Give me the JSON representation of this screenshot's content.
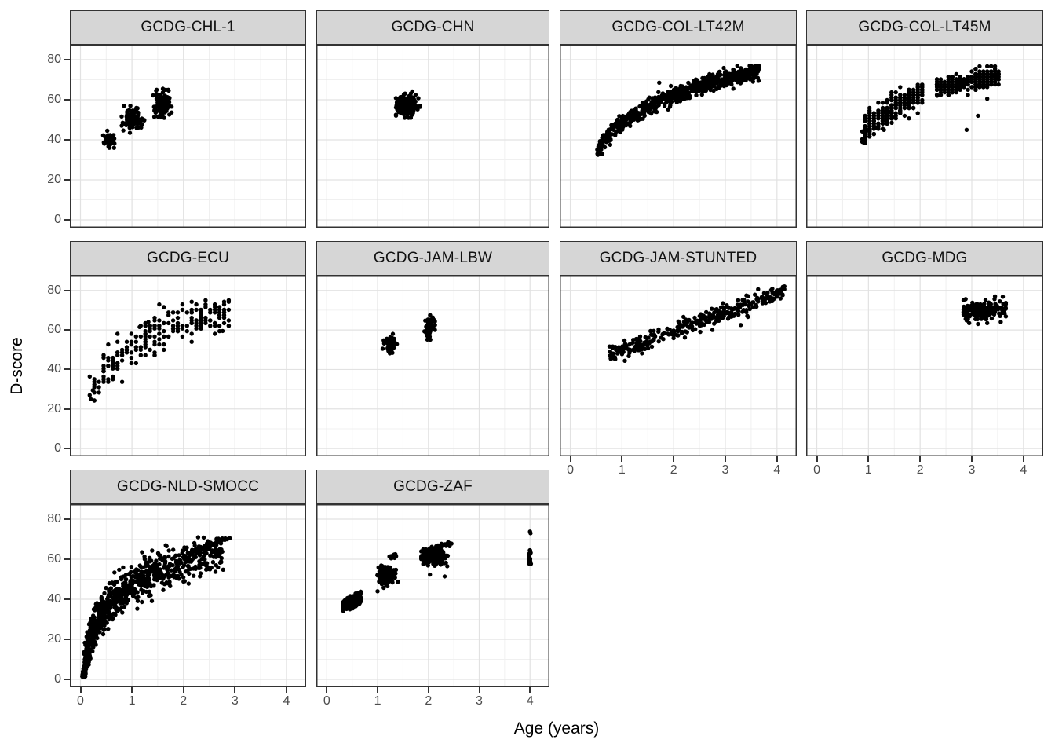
{
  "style": {
    "background": "#ffffff",
    "panel_bg": "#ffffff",
    "panel_border": "#333333",
    "strip_fill": "#d6d6d6",
    "strip_border": "#333333",
    "grid_major": "#e2e2e2",
    "grid_minor": "#f0f0f0",
    "tick_color": "#333333",
    "tick_label_color": "#4d4d4d",
    "point_color": "#000000",
    "point_radius": 2.7
  },
  "chart_data": {
    "type": "scatter",
    "title": "",
    "xlabel": "Age (years)",
    "ylabel": "D-score",
    "x_ticks": [
      0,
      1,
      2,
      3,
      4
    ],
    "y_ticks": [
      0,
      20,
      40,
      60,
      80
    ],
    "x_range": [
      -0.21,
      4.41
    ],
    "y_range": [
      -4,
      87.5
    ],
    "grid": "major+minor",
    "legend": "none",
    "facet_layout": {
      "rows": 3,
      "cols": 4,
      "filled_cells": 10
    },
    "facets": [
      {
        "name": "GCDG-CHL-1",
        "row": 0,
        "col": 0,
        "x_axis": false,
        "y_axis": true,
        "age_range": [
          0.45,
          1.77
        ],
        "dscore_range": [
          36,
          66
        ],
        "pattern": "three discrete age clusters near 0.55, 1.0 and 1.6 years",
        "groups": [
          {
            "type": "blob",
            "n": 60,
            "cx": 0.55,
            "cy": 40,
            "sx": 0.05,
            "sy": 1.7,
            "xmin": 0.44,
            "xmax": 0.68,
            "ymin": 36,
            "ymax": 44.5
          },
          {
            "type": "blob",
            "n": 105,
            "cx": 1.02,
            "cy": 50.5,
            "sx": 0.09,
            "sy": 2.7,
            "xmin": 0.8,
            "xmax": 1.24,
            "ymin": 44,
            "ymax": 57
          },
          {
            "type": "blob",
            "n": 105,
            "cx": 1.58,
            "cy": 57.5,
            "sx": 0.075,
            "sy": 3.2,
            "xmin": 1.38,
            "xmax": 1.77,
            "ymin": 50,
            "ymax": 65
          },
          {
            "type": "points",
            "pts": [
              [
                0.96,
                43.5
              ],
              [
                1.47,
                64.5
              ],
              [
                1.6,
                65.5
              ]
            ]
          }
        ]
      },
      {
        "name": "GCDG-CHN",
        "row": 0,
        "col": 1,
        "x_axis": false,
        "y_axis": false,
        "age_range": [
          1.35,
          1.85
        ],
        "dscore_range": [
          51,
          65
        ],
        "pattern": "single tight cluster near 1.5 years, D-score ~58",
        "groups": [
          {
            "type": "blob",
            "n": 235,
            "cx": 1.57,
            "cy": 57.5,
            "sx": 0.095,
            "sy": 2.6,
            "xmin": 1.36,
            "xmax": 1.84,
            "ymin": 51,
            "ymax": 64.5
          }
        ]
      },
      {
        "name": "GCDG-COL-LT42M",
        "row": 0,
        "col": 2,
        "x_axis": false,
        "y_axis": false,
        "age_range": [
          0.5,
          3.65
        ],
        "dscore_range": [
          33,
          77
        ],
        "pattern": "dense continuous logarithmic band rising from (0.5,34) to (3.6,74)",
        "groups": [
          {
            "type": "trend",
            "n": 660,
            "x0": 0.5,
            "x1": 3.65,
            "fn": "log",
            "a": 48.1,
            "b": 20.3,
            "sd": 2.1,
            "xpow": 0.9,
            "ymin": 32.5,
            "ymax": 77
          },
          {
            "type": "points",
            "pts": [
              [
                1.72,
                68.5
              ],
              [
                0.62,
                33
              ],
              [
                0.55,
                33.5
              ]
            ]
          }
        ]
      },
      {
        "name": "GCDG-COL-LT45M",
        "row": 0,
        "col": 3,
        "x_axis": false,
        "y_axis": false,
        "age_range": [
          0.88,
          3.52
        ],
        "dscore_range": [
          38,
          78
        ],
        "pattern": "two striped bands (discrete ages) 0.9-2.1y and 2.3-3.5y with gap near 2.2y, few low outliers",
        "groups": [
          {
            "type": "trend",
            "n": 335,
            "x0": 0.88,
            "x1": 2.08,
            "fn": "log",
            "a": 46.1,
            "b": 24.4,
            "sd": 3.3,
            "qx": 0.085,
            "qy": 1.3,
            "ymin": 38.5,
            "ymax": 67.5
          },
          {
            "type": "trend",
            "n": 295,
            "x0": 2.3,
            "x1": 3.52,
            "fn": "linear",
            "a": 54.5,
            "b": 5,
            "sd": 2.4,
            "qx": 0.075,
            "qy": 1.3,
            "ymin": 60,
            "ymax": 77.5
          },
          {
            "type": "points",
            "pts": [
              [
                1.16,
                46
              ],
              [
                1.3,
                45
              ],
              [
                1.45,
                48.5
              ],
              [
                1.47,
                51
              ],
              [
                2.9,
                45
              ],
              [
                3.12,
                52
              ],
              [
                3.3,
                60.5
              ],
              [
                2.33,
                62
              ],
              [
                0.9,
                38.8
              ]
            ]
          }
        ]
      },
      {
        "name": "GCDG-ECU",
        "row": 1,
        "col": 0,
        "x_axis": false,
        "y_axis": true,
        "age_range": [
          0.15,
          2.88
        ],
        "dscore_range": [
          24,
          75
        ],
        "pattern": "sparse gridded points rising log-like from (0.2,25) to plateau 60-75 after 1.5y",
        "groups": [
          {
            "type": "trend",
            "n": 235,
            "x0": 0.15,
            "x1": 2.88,
            "fn": "log",
            "a": 52,
            "b": 16,
            "sd": 5.2,
            "qx": 0.09,
            "qy": 1.35,
            "ymin": 24,
            "ymax": 75
          },
          {
            "type": "points",
            "pts": [
              [
                1.15,
                61.5
              ],
              [
                1.32,
                64
              ],
              [
                0.2,
                25
              ],
              [
                0.24,
                29.5
              ],
              [
                2.76,
                59.5
              ]
            ]
          }
        ]
      },
      {
        "name": "GCDG-JAM-LBW",
        "row": 1,
        "col": 1,
        "x_axis": false,
        "y_axis": false,
        "age_range": [
          1.1,
          2.13
        ],
        "dscore_range": [
          48,
          68
        ],
        "pattern": "two small vertical clusters near 1.25y (D 48-58) and 2.0y (D 55-67)",
        "groups": [
          {
            "type": "blob",
            "n": 55,
            "cx": 1.25,
            "cy": 53,
            "sx": 0.05,
            "sy": 2.3,
            "xmin": 1.12,
            "xmax": 1.38,
            "ymin": 48,
            "ymax": 58
          },
          {
            "type": "blob",
            "n": 58,
            "cx": 2.02,
            "cy": 61.5,
            "sx": 0.045,
            "sy": 2.9,
            "xmin": 1.92,
            "xmax": 2.13,
            "ymin": 55,
            "ymax": 67.5
          },
          {
            "type": "points",
            "pts": [
              [
                1.1,
                50.5
              ],
              [
                1.33,
                55.5
              ]
            ]
          }
        ]
      },
      {
        "name": "GCDG-JAM-STUNTED",
        "row": 1,
        "col": 2,
        "x_axis": true,
        "y_axis": false,
        "age_range": [
          0.75,
          4.15
        ],
        "dscore_range": [
          44,
          82
        ],
        "pattern": "linear band rising from (0.75,47) to (4.1,80)",
        "groups": [
          {
            "type": "trend",
            "n": 330,
            "x0": 0.75,
            "x1": 4.15,
            "fn": "linear",
            "a": 40.3,
            "b": 9.5,
            "sd": 2.3,
            "ymin": 44,
            "ymax": 82
          },
          {
            "type": "points",
            "pts": [
              [
                3.3,
                62.5
              ],
              [
                2.75,
                60
              ]
            ]
          }
        ]
      },
      {
        "name": "GCDG-MDG",
        "row": 1,
        "col": 3,
        "x_axis": true,
        "y_axis": false,
        "age_range": [
          2.84,
          3.66
        ],
        "dscore_range": [
          63,
          77
        ],
        "pattern": "single horizontal cluster 2.85-3.65y, D-score mostly 66-75, few below at 63-65",
        "groups": [
          {
            "type": "blob",
            "n": 195,
            "cx": 3.22,
            "cy": 70,
            "sx": 0.23,
            "sy": 2.0,
            "xmin": 2.84,
            "xmax": 3.66,
            "ymin": 65.5,
            "ymax": 76
          },
          {
            "type": "points",
            "pts": [
              [
                2.95,
                63.5
              ],
              [
                3.12,
                63
              ],
              [
                3.3,
                63.5
              ],
              [
                3.45,
                77
              ],
              [
                3.6,
                76.8
              ],
              [
                2.9,
                64.8
              ],
              [
                3.56,
                64
              ]
            ]
          }
        ]
      },
      {
        "name": "GCDG-NLD-SMOCC",
        "row": 2,
        "col": 0,
        "x_axis": true,
        "y_axis": true,
        "age_range": [
          0.04,
          2.85
        ],
        "dscore_range": [
          1,
          71
        ],
        "pattern": "very dense log curve from (0.05,3) to (2.8,70), wide vertical spread, densest below 1y",
        "groups": [
          {
            "type": "trend",
            "n": 920,
            "x0": 0.04,
            "x1": 2.78,
            "fn": "log",
            "a": 47,
            "b": 17,
            "sd": 4.8,
            "xpow": 2.2,
            "ymin": 1.5,
            "ymax": 73
          },
          {
            "type": "trend",
            "n": 55,
            "x0": 2.15,
            "x1": 2.82,
            "fn": "linear",
            "a": 42,
            "b": 10,
            "sd": 0.8,
            "ymin": 60,
            "ymax": 71
          },
          {
            "type": "points",
            "pts": [
              [
                2.85,
                70
              ],
              [
                2.9,
                70.5
              ]
            ]
          }
        ]
      },
      {
        "name": "GCDG-ZAF",
        "row": 2,
        "col": 1,
        "x_axis": true,
        "y_axis": false,
        "age_range": [
          0.32,
          4.03
        ],
        "dscore_range": [
          33,
          74
        ],
        "pattern": "clusters near 0.5y (D 35-42), 1.15y (D 47-57), 2.1y (D 57-68) and a vertical strip at 4y (D 58-74)",
        "groups": [
          {
            "type": "trend",
            "n": 150,
            "x0": 0.32,
            "x1": 0.68,
            "fn": "linear",
            "a": 33,
            "b": 11,
            "sd": 1.7,
            "ymin": 33.5,
            "ymax": 44
          },
          {
            "type": "blob",
            "n": 140,
            "cx": 1.16,
            "cy": 52,
            "sx": 0.08,
            "sy": 2.3,
            "xmin": 0.99,
            "xmax": 1.36,
            "ymin": 46.5,
            "ymax": 57.5
          },
          {
            "type": "trend",
            "n": 12,
            "x0": 1.2,
            "x1": 1.37,
            "fn": "linear",
            "a": 53.6,
            "b": 6,
            "sd": 0.5,
            "ymin": 60,
            "ymax": 62.5
          },
          {
            "type": "blob",
            "n": 175,
            "cx": 2.1,
            "cy": 61,
            "sx": 0.13,
            "sy": 1.9,
            "xmin": 1.86,
            "xmax": 2.38,
            "ymin": 56.5,
            "ymax": 65
          },
          {
            "type": "trend",
            "n": 48,
            "x0": 1.9,
            "x1": 2.46,
            "fn": "linear",
            "a": 49.2,
            "b": 7.7,
            "sd": 0.6,
            "ymin": 62.5,
            "ymax": 68.5
          },
          {
            "type": "column",
            "n": 24,
            "x": 4.0,
            "sx": 0.013,
            "y0": 57.5,
            "y1": 64.5
          },
          {
            "type": "points",
            "pts": [
              [
                4.0,
                73.8
              ],
              [
                4.01,
                73
              ],
              [
                1.0,
                44
              ],
              [
                1.12,
                45.7
              ],
              [
                1.4,
                48.7
              ],
              [
                2.03,
                52.3
              ],
              [
                2.32,
                51.4
              ]
            ]
          }
        ]
      }
    ]
  }
}
